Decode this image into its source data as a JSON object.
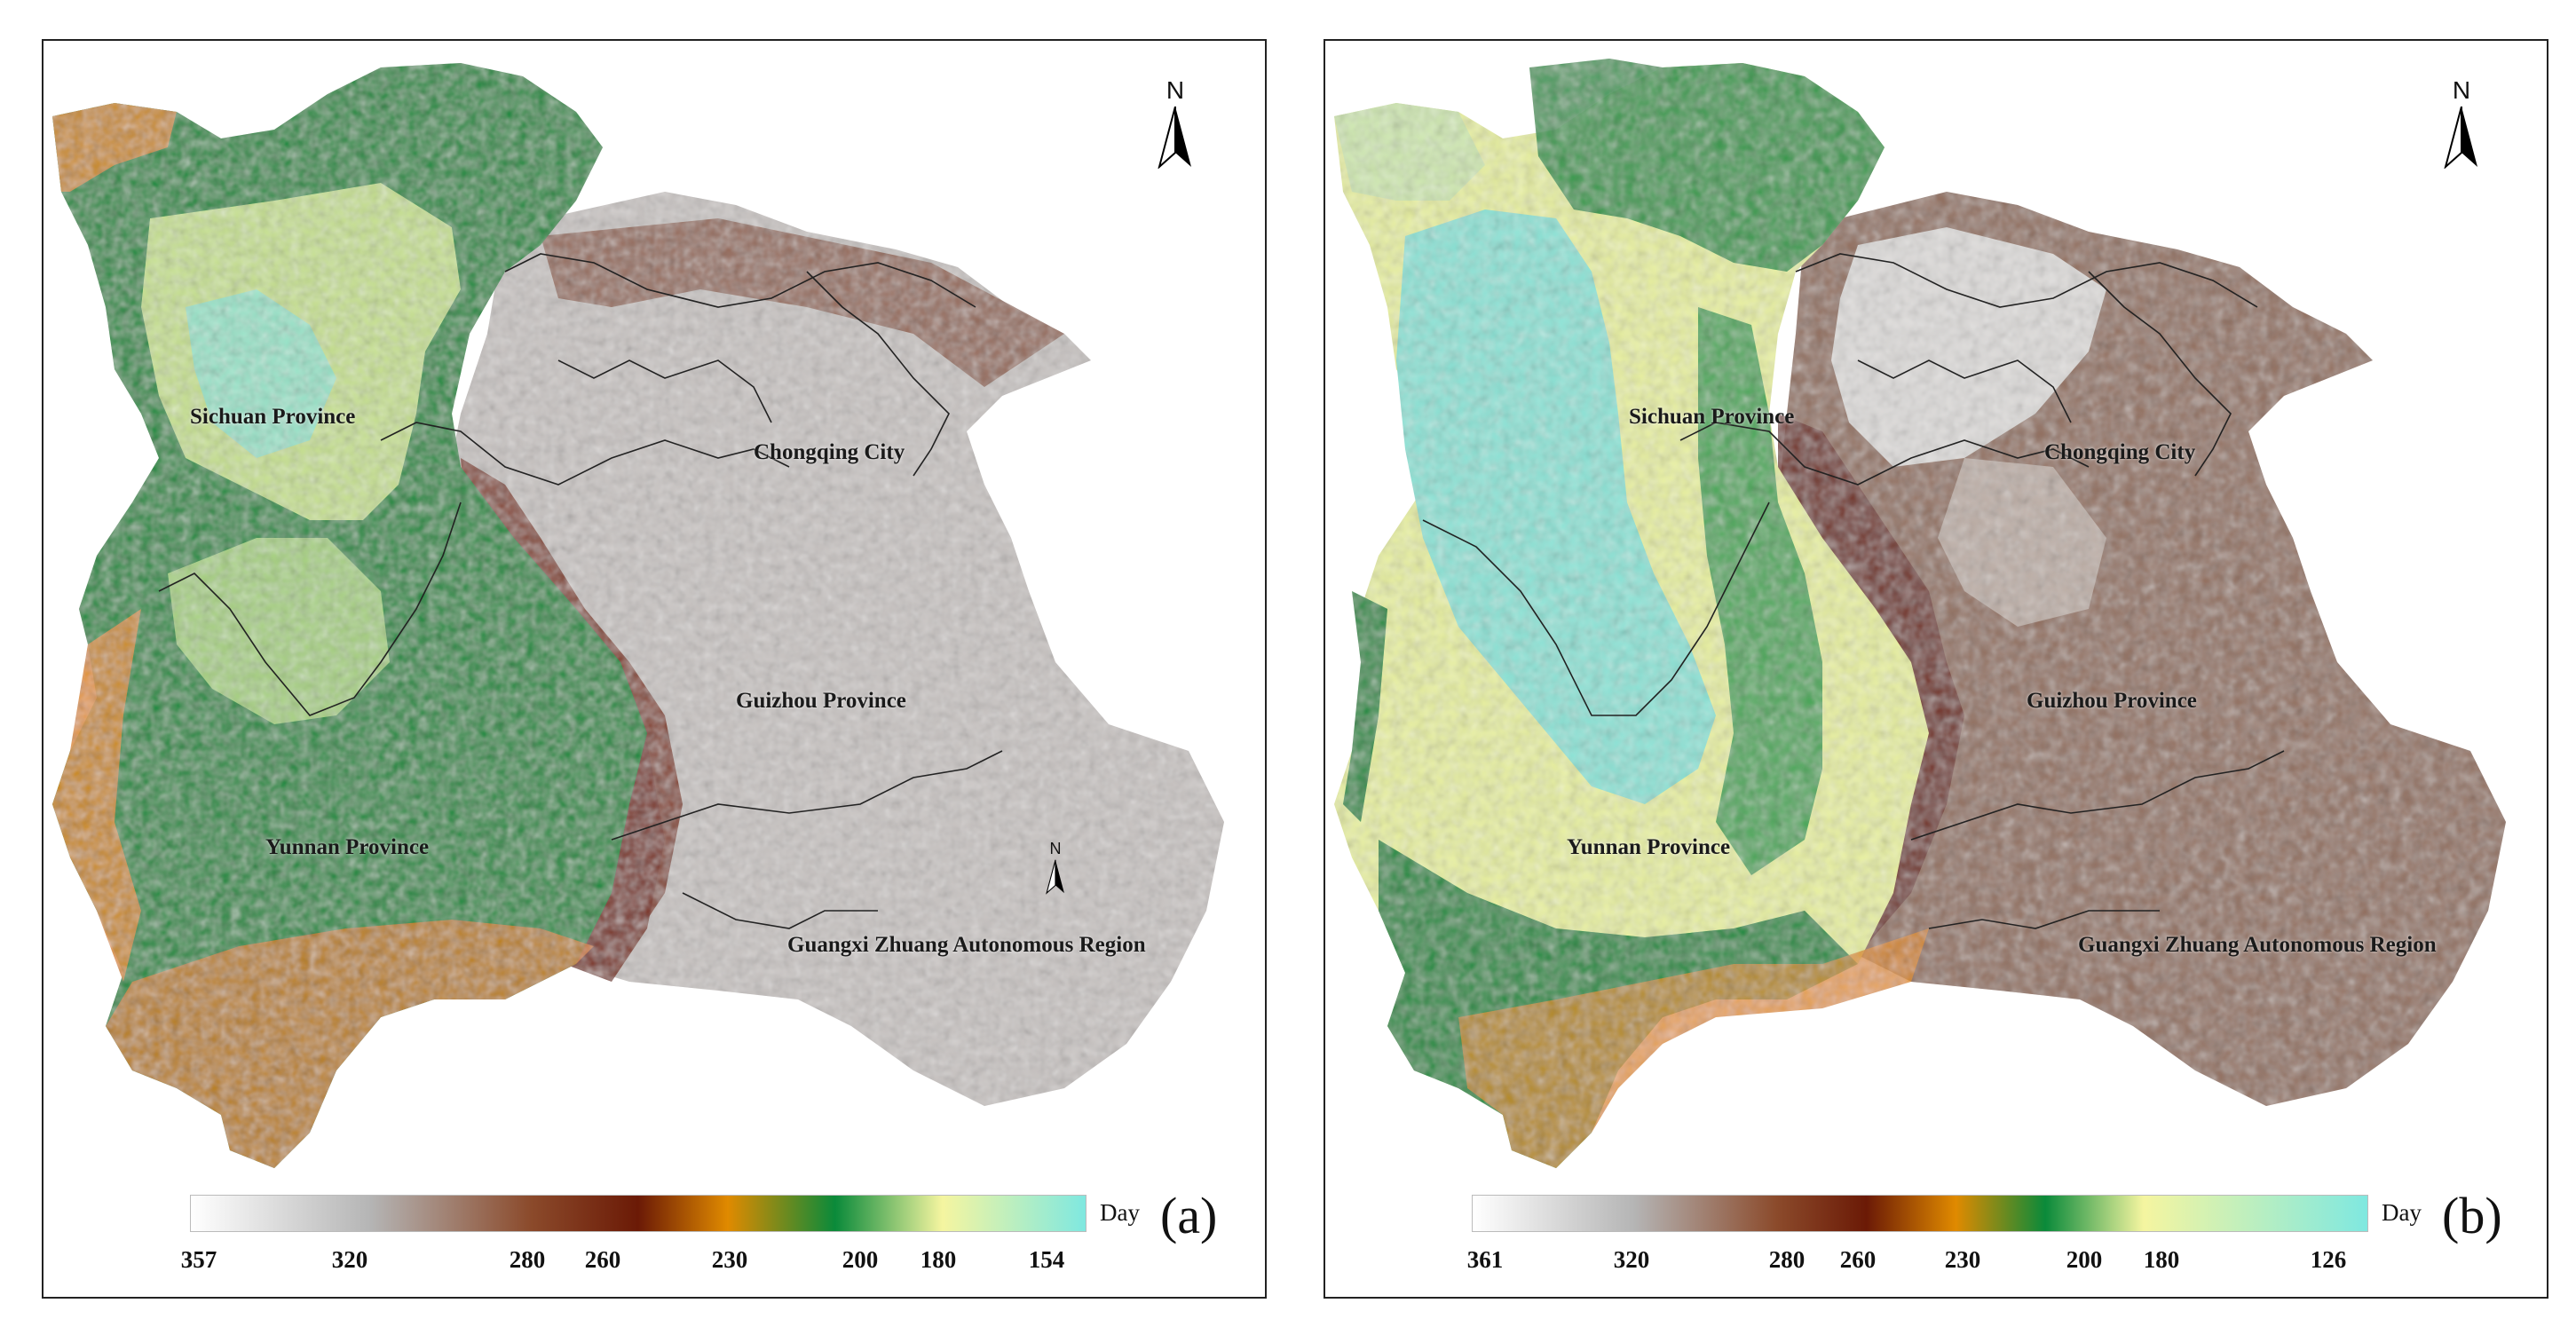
{
  "panels": [
    {
      "letter": "(a)",
      "regions": {
        "sichuan": "Sichuan Province",
        "chongqing": "Chongqing City",
        "guizhou": "Guizhou Province",
        "yunnan": "Yunnan Province",
        "guangxi": "Guangxi Zhuang Autonomous Region"
      },
      "north_label": "N",
      "inset_north_label": "N",
      "legend": {
        "unit": "Day",
        "min": "154",
        "max": "357",
        "ticks": [
          "357",
          "320",
          "280",
          "260",
          "230",
          "200",
          "180",
          "154"
        ],
        "colors": [
          "#ffffff",
          "#b0b0b0",
          "#8b4a2b",
          "#6b1a06",
          "#e08a00",
          "#0a8a3a",
          "#f5f5a0",
          "#7fe8e0"
        ]
      }
    },
    {
      "letter": "(b)",
      "regions": {
        "sichuan": "Sichuan Province",
        "chongqing": "Chongqing City",
        "guizhou": "Guizhou Province",
        "yunnan": "Yunnan Province",
        "guangxi": "Guangxi Zhuang Autonomous Region"
      },
      "north_label": "N",
      "legend": {
        "unit": "Day",
        "min": "126",
        "max": "361",
        "ticks": [
          "361",
          "320",
          "280",
          "260",
          "230",
          "200",
          "180",
          "126"
        ],
        "colors": [
          "#ffffff",
          "#b0b0b0",
          "#8b4a2b",
          "#6b1a06",
          "#e08a00",
          "#0a8a3a",
          "#f5f5a0",
          "#7fe8e0"
        ]
      }
    }
  ]
}
